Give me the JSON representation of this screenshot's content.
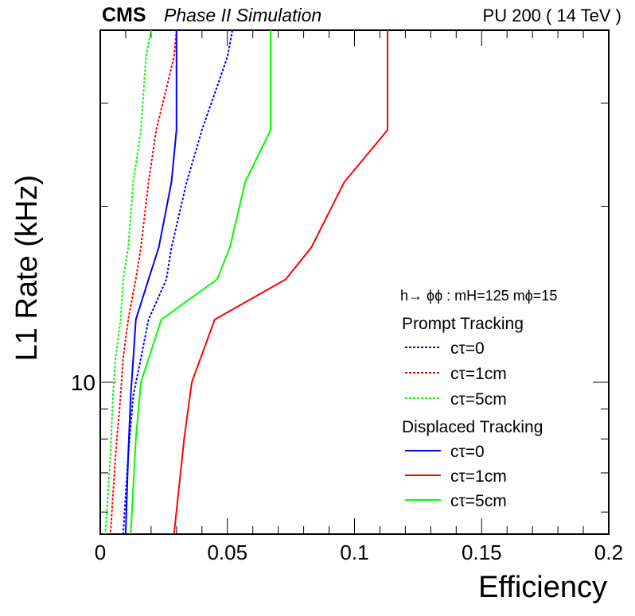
{
  "header": {
    "experiment": "CMS",
    "status": "Phase II Simulation",
    "conditions": "PU 200 ( 14 TeV  )"
  },
  "chart_data": {
    "type": "line",
    "xlabel": "Efficiency",
    "ylabel": "L1 Rate (kHz)",
    "xlim": [
      0,
      0.2
    ],
    "ylim": [
      5.5,
      40
    ],
    "yscale": "log",
    "x_ticks": [
      "0",
      "0.05",
      "0.1",
      "0.15",
      "0.2"
    ],
    "y_tick_labels": [
      {
        "value": 10,
        "label": "10"
      }
    ],
    "grid": false,
    "legend_placement": "bottom-right",
    "legend": {
      "header": "h→ ϕϕ : mH=125 mϕ=15",
      "group1": "Prompt Tracking",
      "group2": "Displaced Tracking"
    },
    "series": [
      {
        "name": "cτ=0",
        "group": "Prompt Tracking",
        "color": "#0000ff",
        "dash": "dotted",
        "points": [
          [
            0.052,
            40
          ],
          [
            0.05,
            36
          ],
          [
            0.04,
            27
          ],
          [
            0.034,
            22
          ],
          [
            0.028,
            17
          ],
          [
            0.026,
            15
          ],
          [
            0.019,
            12.8
          ],
          [
            0.016,
            11
          ],
          [
            0.013,
            9.5
          ],
          [
            0.011,
            7.5
          ],
          [
            0.009,
            5.5
          ]
        ]
      },
      {
        "name": "cτ=1cm",
        "group": "Prompt Tracking",
        "color": "#ff0000",
        "dash": "dotted",
        "points": [
          [
            0.03,
            40
          ],
          [
            0.029,
            36
          ],
          [
            0.022,
            27
          ],
          [
            0.019,
            22
          ],
          [
            0.016,
            17
          ],
          [
            0.014,
            15
          ],
          [
            0.011,
            12.8
          ],
          [
            0.009,
            11
          ],
          [
            0.008,
            9.5
          ],
          [
            0.006,
            7.5
          ],
          [
            0.004,
            5.5
          ]
        ]
      },
      {
        "name": "cτ=5cm",
        "group": "Prompt Tracking",
        "color": "#00ff00",
        "dash": "dotted",
        "points": [
          [
            0.02,
            40
          ],
          [
            0.018,
            36
          ],
          [
            0.016,
            27
          ],
          [
            0.013,
            22
          ],
          [
            0.011,
            17
          ],
          [
            0.009,
            15
          ],
          [
            0.008,
            12.8
          ],
          [
            0.006,
            11
          ],
          [
            0.005,
            9.5
          ],
          [
            0.004,
            7.5
          ],
          [
            0.002,
            5.5
          ]
        ]
      },
      {
        "name": "cτ=0",
        "group": "Displaced Tracking",
        "color": "#0000ff",
        "dash": "solid",
        "points": [
          [
            0.03,
            40
          ],
          [
            0.03,
            27
          ],
          [
            0.028,
            22
          ],
          [
            0.023,
            17
          ],
          [
            0.019,
            15
          ],
          [
            0.014,
            12.8
          ],
          [
            0.013,
            11
          ],
          [
            0.012,
            9.5
          ],
          [
            0.011,
            7.5
          ],
          [
            0.01,
            5.5
          ]
        ]
      },
      {
        "name": "cτ=1cm",
        "group": "Displaced Tracking",
        "color": "#ff0000",
        "dash": "solid",
        "points": [
          [
            0.113,
            40
          ],
          [
            0.113,
            27
          ],
          [
            0.096,
            22
          ],
          [
            0.083,
            17
          ],
          [
            0.073,
            15
          ],
          [
            0.045,
            12.8
          ],
          [
            0.036,
            10
          ],
          [
            0.033,
            8
          ],
          [
            0.029,
            5.5
          ]
        ]
      },
      {
        "name": "cτ=5cm",
        "group": "Displaced Tracking",
        "color": "#00ff00",
        "dash": "solid",
        "points": [
          [
            0.067,
            40
          ],
          [
            0.067,
            27
          ],
          [
            0.057,
            22
          ],
          [
            0.051,
            17
          ],
          [
            0.046,
            15
          ],
          [
            0.024,
            12.8
          ],
          [
            0.016,
            10
          ],
          [
            0.014,
            8
          ],
          [
            0.012,
            5.5
          ]
        ]
      }
    ]
  }
}
